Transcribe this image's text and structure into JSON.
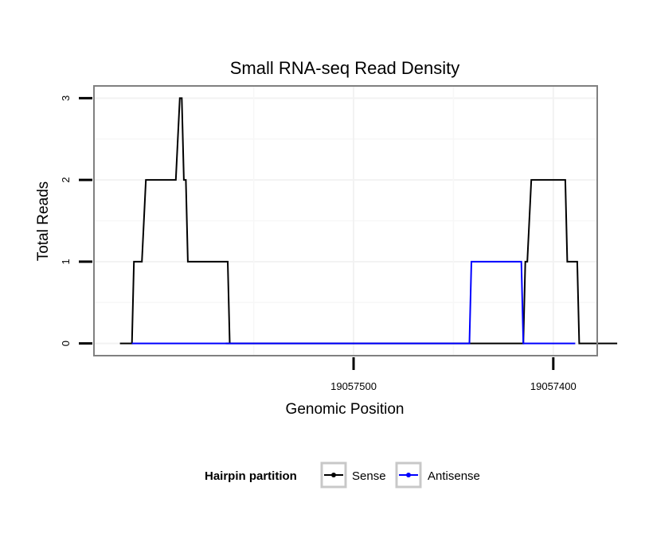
{
  "chart_data": {
    "type": "line",
    "title": "Small RNA-seq Read Density",
    "xlabel": "Genomic Position",
    "ylabel": "Total Reads",
    "x_reversed": true,
    "xlim": [
      19057630,
      19057378
    ],
    "ylim": [
      -0.15,
      3.15
    ],
    "x_ticks": [
      19057500,
      19057400
    ],
    "x_tick_labels": [
      "19057500",
      "19057400"
    ],
    "y_ticks": [
      0,
      1,
      2,
      3
    ],
    "y_tick_labels": [
      "0",
      "1",
      "2",
      "3"
    ],
    "grid": true,
    "legend": {
      "title": "Hairpin partition",
      "position": "bottom",
      "entries": [
        "Sense",
        "Antisense"
      ]
    },
    "series": [
      {
        "name": "Sense",
        "color": "#000000",
        "x": [
          19057617,
          19057611,
          19057610,
          19057607,
          19057606,
          19057604,
          19057603,
          19057590,
          19057589,
          19057587,
          19057586,
          19057585,
          19057584,
          19057583,
          19057582,
          19057563,
          19057562,
          19057564,
          19057550,
          19057500,
          19057450,
          19057416,
          19057415,
          19057414,
          19057413,
          19057411,
          19057410,
          19057394,
          19057393,
          19057388,
          19057387,
          19057384,
          19057368
        ],
        "y": [
          0,
          0,
          1,
          1,
          1,
          2,
          2,
          2,
          2,
          3,
          3,
          2,
          2,
          1,
          1,
          1,
          0,
          0,
          0,
          0,
          0,
          0,
          0,
          1,
          1,
          2,
          2,
          2,
          1,
          1,
          0,
          0,
          0
        ]
      },
      {
        "name": "Antisense",
        "color": "#0000ff",
        "x": [
          19057611,
          19057500,
          19057564,
          19057442,
          19057441,
          19057416,
          19057415,
          19057389
        ],
        "y": [
          0,
          0,
          0,
          0,
          1,
          1,
          0,
          0
        ]
      }
    ]
  }
}
